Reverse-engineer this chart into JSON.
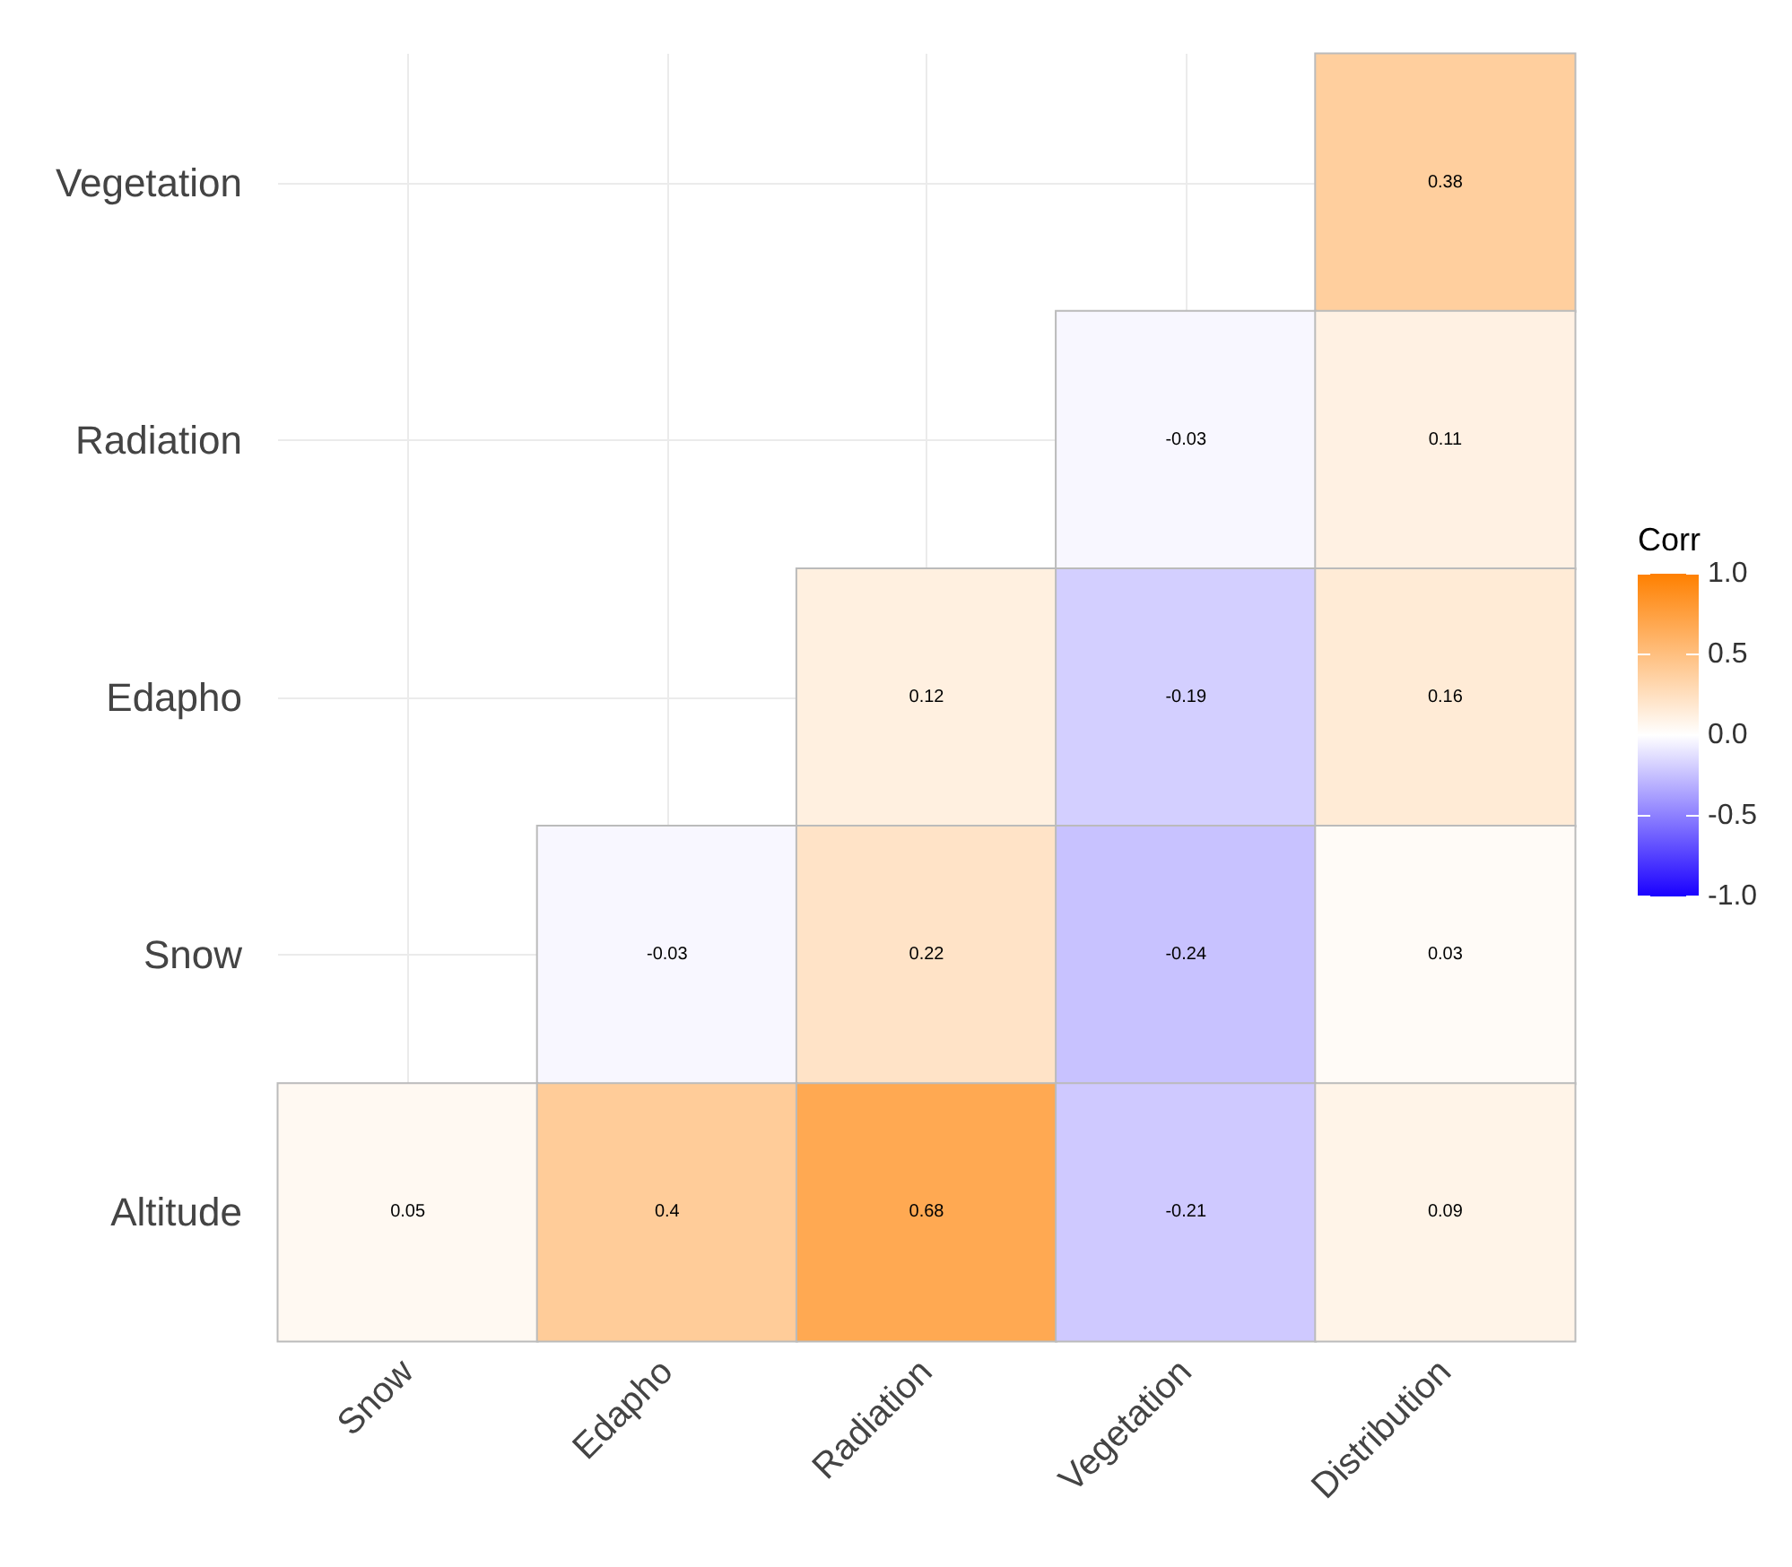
{
  "chart_data": {
    "type": "heatmap",
    "categories": [
      "Snow",
      "Edapho",
      "Radiation",
      "Vegetation",
      "Distribution"
    ],
    "y_categories": [
      "Vegetation",
      "Radiation",
      "Edapho",
      "Snow",
      "Altitude"
    ],
    "cells": [
      [
        null,
        null,
        null,
        null,
        0.38
      ],
      [
        null,
        null,
        null,
        -0.03,
        0.11
      ],
      [
        null,
        null,
        0.12,
        -0.19,
        0.16
      ],
      [
        null,
        -0.03,
        0.22,
        -0.24,
        0.03
      ],
      [
        0.05,
        0.4,
        0.68,
        -0.21,
        0.09
      ]
    ],
    "data_labels": true,
    "grid": true,
    "clabel": "Corr",
    "clim": [
      -1,
      1
    ],
    "cticks": [
      {
        "value": -1,
        "label": "-1.0"
      },
      {
        "value": -0.5,
        "label": "-0.5"
      },
      {
        "value": 0,
        "label": "0.0"
      },
      {
        "value": 0.5,
        "label": "0.5"
      },
      {
        "value": 1,
        "label": "1.0"
      }
    ],
    "colors": [
      "#1a00ff",
      "#ffffff",
      "#ff8000"
    ]
  }
}
